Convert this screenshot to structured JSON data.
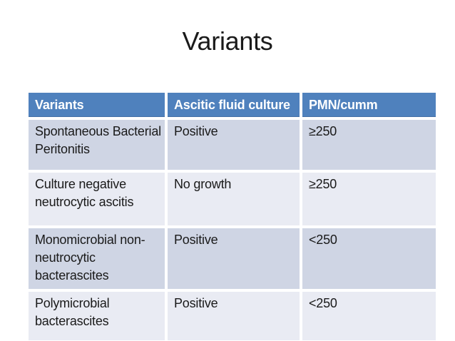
{
  "slide": {
    "title": "Variants"
  },
  "table": {
    "columns": [
      "Variants",
      "Ascitic fluid culture",
      "PMN/cumm"
    ],
    "rows": [
      {
        "variant": "Spontaneous Bacterial Peritonitis",
        "culture": "Positive",
        "pmn": "≥250"
      },
      {
        "variant": "Culture negative neutrocytic ascitis",
        "culture": "No growth",
        "pmn": "≥250"
      },
      {
        "variant": "Monomicrobial non-neutrocytic bacterascites",
        "culture": "Positive",
        "pmn": "<250"
      },
      {
        "variant": "Polymicrobial bacterascites",
        "culture": "Positive",
        "pmn": "<250"
      }
    ],
    "colors": {
      "header_bg": "#4F81BD",
      "header_text": "#FFFFFF",
      "row_odd_bg": "#CFD5E4",
      "row_even_bg": "#E9EBF3",
      "body_text": "#1A1A1A",
      "divider": "#FFFFFF"
    }
  }
}
